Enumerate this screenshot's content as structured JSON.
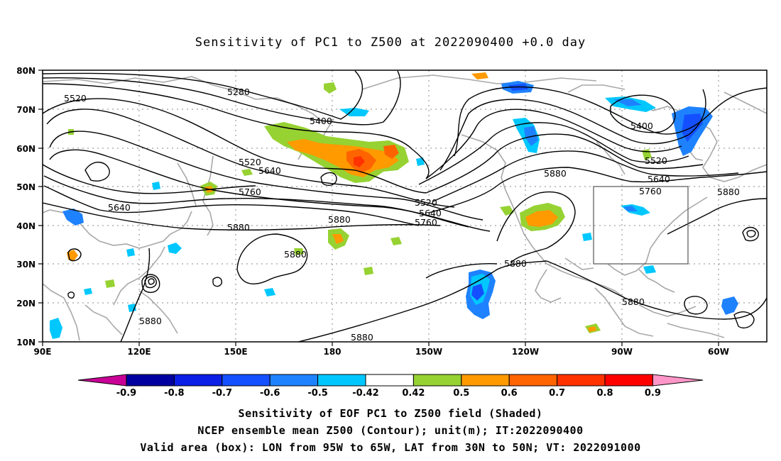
{
  "title": "Sensitivity of PC1 to Z500 at 2022090400 +0.0 day",
  "lat_labels": [
    "80N",
    "70N",
    "60N",
    "50N",
    "40N",
    "30N",
    "20N",
    "10N"
  ],
  "lon_labels": [
    "90E",
    "120E",
    "150E",
    "180",
    "150W",
    "120W",
    "90W",
    "60W"
  ],
  "contour_labels": {
    "c5280": "5280",
    "c5400a": "5400",
    "c5400b": "5400",
    "c5520a": "5520",
    "c5520b": "5520",
    "c5520c": "5520",
    "c5520d": "5520",
    "c5640a": "5640",
    "c5640b": "5640",
    "c5640c": "5640",
    "c5640d": "5640",
    "c5760a": "5760",
    "c5760b": "5760",
    "c5760c": "5760",
    "c5880a": "5880",
    "c5880b": "5880",
    "c5880c": "5880",
    "c5880d": "5880",
    "c5880e": "5880",
    "c5880f": "5880",
    "c5880g": "5880",
    "c5880h": "5880",
    "c5880i": "5880"
  },
  "colorbar": {
    "labels": [
      "-0.9",
      "-0.8",
      "-0.7",
      "-0.6",
      "-0.5",
      "-0.42",
      "0.42",
      "0.5",
      "0.6",
      "0.7",
      "0.8",
      "0.9"
    ],
    "colors": [
      "#0000a0",
      "#0a1ee6",
      "#1450ff",
      "#1e82ff",
      "#00c8ff",
      "#ffffff",
      "#96d232",
      "#ff9a00",
      "#ff6400",
      "#ff3200",
      "#ff0000"
    ],
    "low_end_color": "#c80096",
    "high_end_color": "#ff96c8"
  },
  "captions": {
    "line1": "Sensitivity of EOF PC1 to Z500 field (Shaded)",
    "line2": "NCEP ensemble mean Z500 (Contour); unit(m); IT:2022090400",
    "line3": "Valid area (box): LON from 95W to 65W, LAT from 30N to 50N; VT: 2022091000"
  },
  "valid_box": {
    "lon_from": "95W",
    "lon_to": "65W",
    "lat_from": "30N",
    "lat_to": "50N"
  }
}
